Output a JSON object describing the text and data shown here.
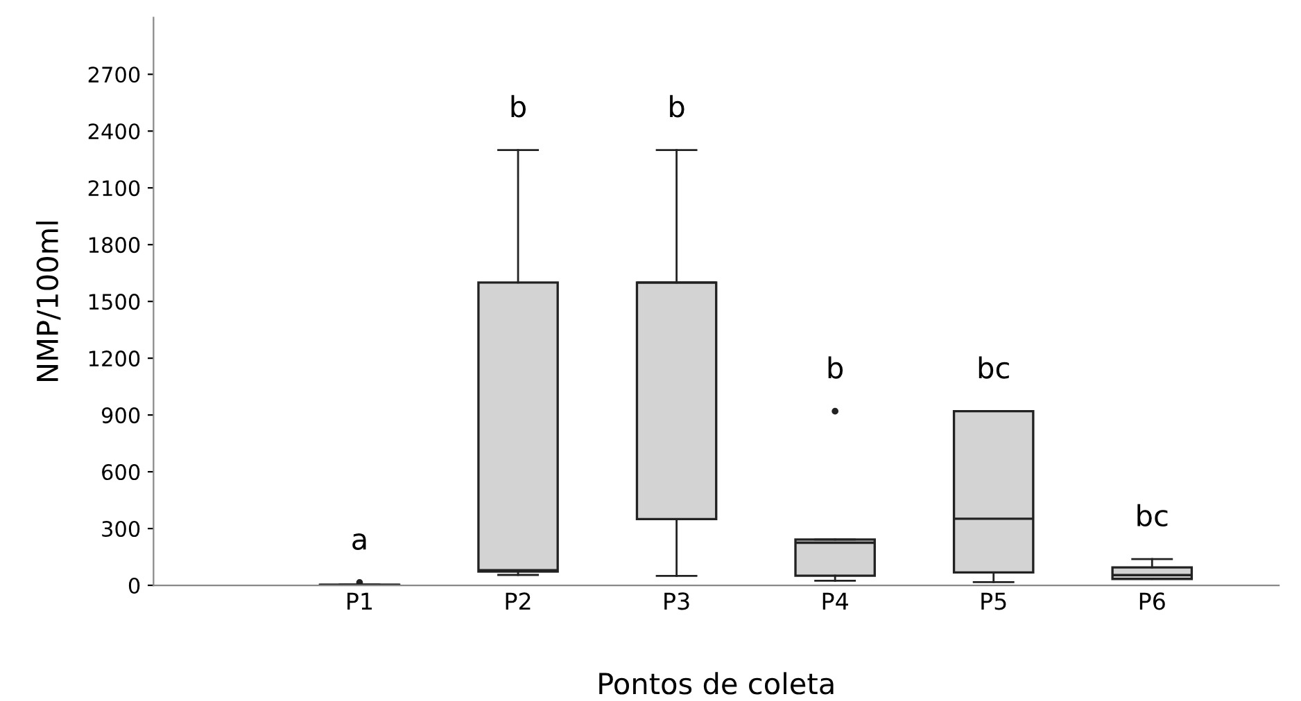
{
  "chart_data": {
    "type": "box",
    "xlabel": "Pontos de coleta",
    "ylabel": "NMP/100ml",
    "categories": [
      "P1",
      "P2",
      "P3",
      "P4",
      "P5",
      "P6"
    ],
    "boxes": [
      {
        "low": 1,
        "q1": 2,
        "median": 2,
        "q3": 3,
        "high": 4,
        "outliers": [
          15
        ]
      },
      {
        "low": 55,
        "q1": 73,
        "median": 80,
        "q3": 1600,
        "high": 2300
      },
      {
        "low": 50,
        "q1": 350,
        "median": 1600,
        "q3": 1600,
        "high": 2300
      },
      {
        "low": 24,
        "q1": 51,
        "median": 225,
        "q3": 242,
        "high": 242,
        "outliers": [
          920
        ]
      },
      {
        "low": 17,
        "q1": 68,
        "median": 352,
        "q3": 920,
        "high": 920
      },
      {
        "low": 34,
        "q1": 34,
        "median": 54,
        "q3": 95,
        "high": 139
      }
    ],
    "color": "#d3d3d3",
    "ylim": [
      0,
      3000
    ],
    "yticks": [
      0,
      300,
      600,
      900,
      1200,
      1500,
      1800,
      2100,
      2400,
      2700
    ],
    "grid": false,
    "annotations": [
      "a",
      "b",
      "b",
      "b",
      "bc",
      "bc"
    ]
  }
}
